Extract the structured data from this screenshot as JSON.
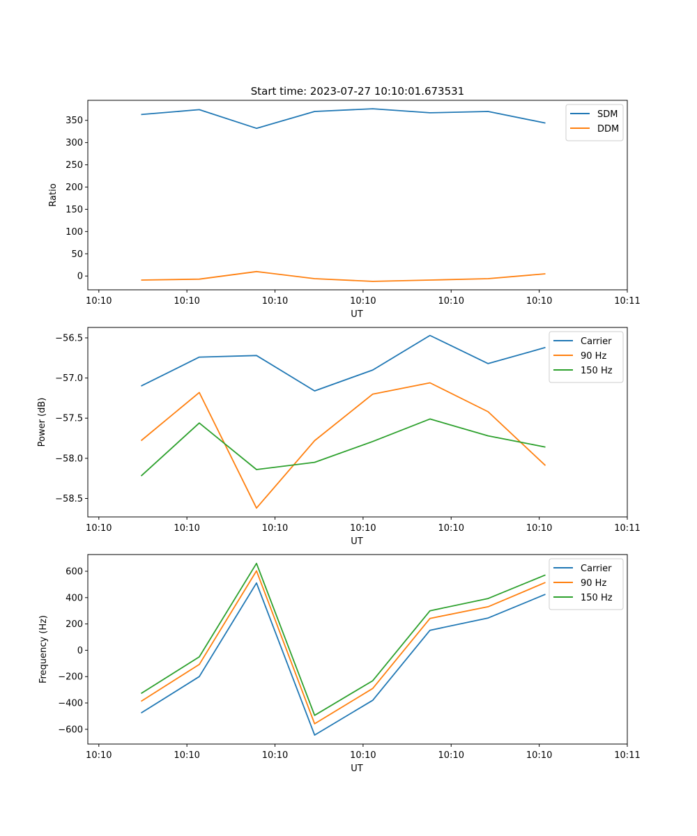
{
  "figure": {
    "title": "Start time: 2023-07-27 10:10:01.673531"
  },
  "chart_data": [
    {
      "type": "line",
      "title": "Start time: 2023-07-27 10:10:01.673531",
      "xlabel": "UT",
      "ylabel": "Ratio",
      "x_unit": "seconds after 10:10:00",
      "x": [
        4.8,
        11.4,
        17.9,
        24.5,
        31.1,
        37.6,
        44.2,
        50.7
      ],
      "xlim": [
        -1.25,
        60
      ],
      "xticks": [
        0,
        10,
        20,
        30,
        40,
        50,
        60
      ],
      "xtick_labels": [
        "10:10",
        "10:10",
        "10:10",
        "10:10",
        "10:10",
        "10:10",
        "10:11"
      ],
      "ylim": [
        -31,
        395
      ],
      "yticks": [
        0,
        50,
        100,
        150,
        200,
        250,
        300,
        350
      ],
      "ytick_labels": [
        "0",
        "50",
        "100",
        "150",
        "200",
        "250",
        "300",
        "350"
      ],
      "legend": "top-right",
      "grid": false,
      "series": [
        {
          "name": "SDM",
          "color": "#1f77b4",
          "values": [
            363,
            374,
            332,
            370,
            376,
            367,
            370,
            344
          ]
        },
        {
          "name": "DDM",
          "color": "#ff7f0e",
          "values": [
            -9,
            -7,
            10,
            -6,
            -12,
            -9,
            -6,
            5
          ]
        }
      ]
    },
    {
      "type": "line",
      "title": "",
      "xlabel": "UT",
      "ylabel": "Power (dB)",
      "x_unit": "seconds after 10:10:00",
      "x": [
        4.8,
        11.4,
        17.9,
        24.5,
        31.1,
        37.6,
        44.2,
        50.7
      ],
      "xlim": [
        -1.25,
        60
      ],
      "xticks": [
        0,
        10,
        20,
        30,
        40,
        50,
        60
      ],
      "xtick_labels": [
        "10:10",
        "10:10",
        "10:10",
        "10:10",
        "10:10",
        "10:10",
        "10:11"
      ],
      "ylim": [
        -58.73,
        -56.37
      ],
      "yticks": [
        -58.5,
        -58.0,
        -57.5,
        -57.0,
        -56.5
      ],
      "ytick_labels": [
        "−58.5",
        "−58.0",
        "−57.5",
        "−57.0",
        "−56.5"
      ],
      "legend": "top-right",
      "grid": false,
      "series": [
        {
          "name": "Carrier",
          "color": "#1f77b4",
          "values": [
            -57.1,
            -56.74,
            -56.72,
            -57.16,
            -56.9,
            -56.47,
            -56.82,
            -56.62
          ]
        },
        {
          "name": "90 Hz",
          "color": "#ff7f0e",
          "values": [
            -57.78,
            -57.18,
            -58.62,
            -57.78,
            -57.2,
            -57.06,
            -57.42,
            -58.09
          ]
        },
        {
          "name": "150 Hz",
          "color": "#2ca02c",
          "values": [
            -58.22,
            -57.56,
            -58.14,
            -58.05,
            -57.79,
            -57.51,
            -57.72,
            -57.86
          ]
        }
      ]
    },
    {
      "type": "line",
      "title": "",
      "xlabel": "UT",
      "ylabel": "Frequency (Hz)",
      "x_unit": "seconds after 10:10:00",
      "x": [
        4.8,
        11.4,
        17.9,
        24.5,
        31.1,
        37.6,
        44.2,
        50.7
      ],
      "xlim": [
        -1.25,
        60
      ],
      "xticks": [
        0,
        10,
        20,
        30,
        40,
        50,
        60
      ],
      "xtick_labels": [
        "10:10",
        "10:10",
        "10:10",
        "10:10",
        "10:10",
        "10:10",
        "10:11"
      ],
      "ylim": [
        -712,
        727
      ],
      "yticks": [
        -600,
        -400,
        -200,
        0,
        200,
        400,
        600
      ],
      "ytick_labels": [
        "−600",
        "−400",
        "−200",
        "0",
        "200",
        "400",
        "600"
      ],
      "legend": "top-right",
      "grid": false,
      "series": [
        {
          "name": "Carrier",
          "color": "#1f77b4",
          "values": [
            -476,
            -200,
            511,
            -644,
            -380,
            152,
            245,
            425
          ]
        },
        {
          "name": "90 Hz",
          "color": "#ff7f0e",
          "values": [
            -387,
            -108,
            603,
            -558,
            -290,
            242,
            331,
            515
          ]
        },
        {
          "name": "150 Hz",
          "color": "#2ca02c",
          "values": [
            -328,
            -50,
            660,
            -494,
            -231,
            300,
            393,
            572
          ]
        }
      ]
    }
  ]
}
